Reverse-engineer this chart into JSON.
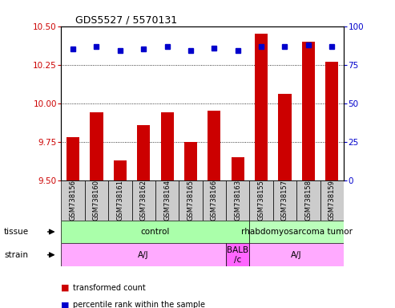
{
  "title": "GDS5527 / 5570131",
  "samples": [
    "GSM738156",
    "GSM738160",
    "GSM738161",
    "GSM738162",
    "GSM738164",
    "GSM738165",
    "GSM738166",
    "GSM738163",
    "GSM738155",
    "GSM738157",
    "GSM738158",
    "GSM738159"
  ],
  "bar_values": [
    9.78,
    9.94,
    9.63,
    9.86,
    9.94,
    9.75,
    9.95,
    9.65,
    10.45,
    10.06,
    10.4,
    10.27
  ],
  "dot_values": [
    85,
    87,
    84,
    85,
    87,
    84,
    86,
    84,
    87,
    87,
    88,
    87
  ],
  "ymin": 9.5,
  "ymax": 10.5,
  "y2min": 0,
  "y2max": 100,
  "yticks": [
    9.5,
    9.75,
    10.0,
    10.25,
    10.5
  ],
  "y2ticks": [
    0,
    25,
    50,
    75,
    100
  ],
  "bar_color": "#cc0000",
  "dot_color": "#0000cc",
  "tissue_labels": [
    {
      "label": "control",
      "start": 0,
      "end": 8,
      "color": "#aaffaa"
    },
    {
      "label": "rhabdomyosarcoma tumor",
      "start": 8,
      "end": 12,
      "color": "#bbffbb"
    }
  ],
  "strain_labels": [
    {
      "label": "A/J",
      "start": 0,
      "end": 7,
      "color": "#ffaaff"
    },
    {
      "label": "BALB\n/c",
      "start": 7,
      "end": 8,
      "color": "#ff66ff"
    },
    {
      "label": "A/J",
      "start": 8,
      "end": 12,
      "color": "#ffaaff"
    }
  ],
  "legend_items": [
    {
      "color": "#cc0000",
      "label": "transformed count"
    },
    {
      "color": "#0000cc",
      "label": "percentile rank within the sample"
    }
  ],
  "ytick_color": "#cc0000",
  "y2tick_color": "#0000cc",
  "bg_color": "#ffffff",
  "bar_width": 0.55
}
